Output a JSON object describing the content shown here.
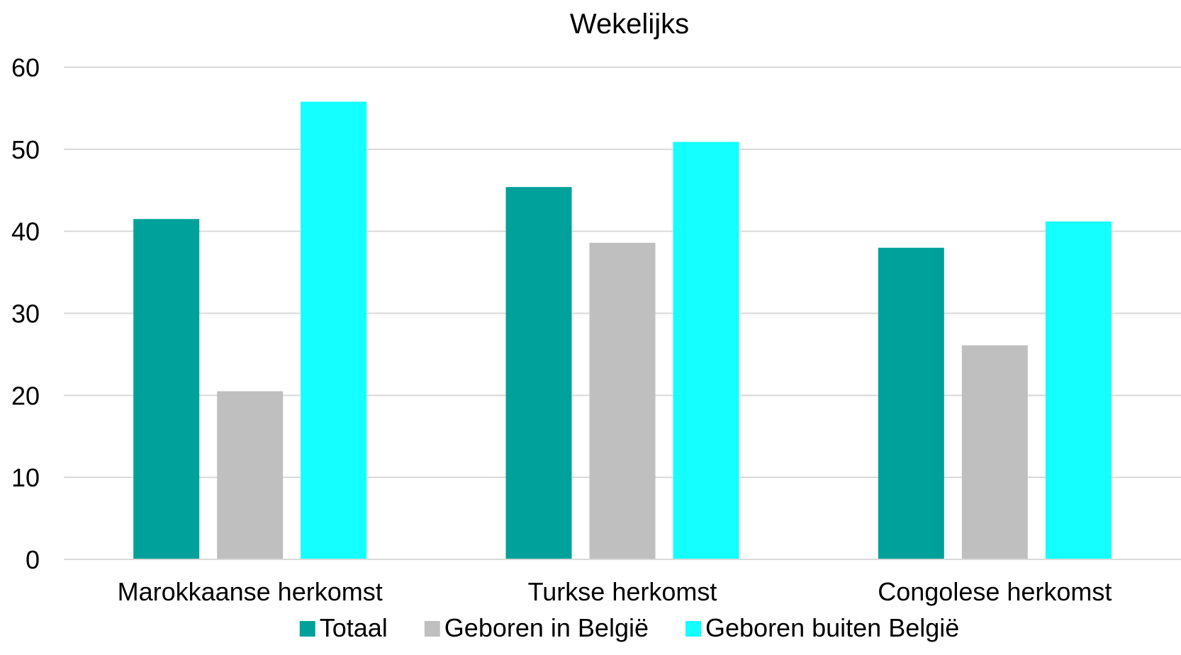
{
  "chart_data": {
    "type": "bar",
    "title": "Wekelijks",
    "xlabel": "",
    "ylabel": "",
    "categories": [
      "Marokkaanse herkomst",
      "Turkse herkomst",
      "Congolese herkomst"
    ],
    "series": [
      {
        "name": "Totaal",
        "color": "#00A19A",
        "values": [
          41.5,
          45.4,
          38.0
        ]
      },
      {
        "name": "Geboren in België",
        "color": "#BFBFBF",
        "values": [
          20.5,
          38.6,
          26.1
        ]
      },
      {
        "name": "Geboren buiten België",
        "color": "#14FFFF",
        "values": [
          55.8,
          50.9,
          41.2
        ]
      }
    ],
    "ylim": [
      0,
      60
    ],
    "yticks": [
      "0",
      "10",
      "20",
      "30",
      "40",
      "50",
      "60"
    ],
    "grid": true,
    "legend_position": "bottom"
  }
}
